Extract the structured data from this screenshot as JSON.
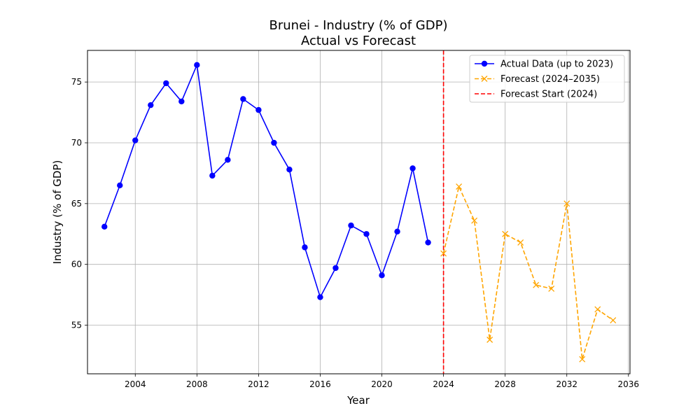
{
  "chart_data": {
    "type": "line",
    "title": "Brunei - Industry (% of GDP)",
    "subtitle": "Actual vs Forecast",
    "xlabel": "Year",
    "ylabel": "Industry (% of GDP)",
    "xlim": [
      2000.9,
      2036.1
    ],
    "ylim": [
      51.0,
      77.6
    ],
    "xticks": [
      2004,
      2008,
      2012,
      2016,
      2020,
      2024,
      2028,
      2032,
      2036
    ],
    "yticks": [
      55,
      60,
      65,
      70,
      75
    ],
    "grid": true,
    "legend_position": "top-right",
    "series": [
      {
        "name": "Actual Data (up to 2023)",
        "color": "#0000ff",
        "style": "solid",
        "marker": "circle",
        "x": [
          2002,
          2003,
          2004,
          2005,
          2006,
          2007,
          2008,
          2009,
          2010,
          2011,
          2012,
          2013,
          2014,
          2015,
          2016,
          2017,
          2018,
          2019,
          2020,
          2021,
          2022,
          2023
        ],
        "y": [
          63.1,
          66.5,
          70.2,
          73.1,
          74.9,
          73.4,
          76.4,
          67.3,
          68.6,
          73.6,
          72.7,
          70.0,
          67.8,
          61.4,
          57.3,
          59.7,
          63.2,
          62.5,
          59.1,
          62.7,
          67.9,
          61.8
        ]
      },
      {
        "name": "Forecast (2024–2035)",
        "color": "#ffa500",
        "style": "dashed",
        "marker": "x",
        "x": [
          2024,
          2025,
          2026,
          2027,
          2028,
          2029,
          2030,
          2031,
          2032,
          2033,
          2034,
          2035
        ],
        "y": [
          60.9,
          66.4,
          63.6,
          53.8,
          62.5,
          61.8,
          58.3,
          58.0,
          65.0,
          52.2,
          56.3,
          55.4
        ]
      }
    ],
    "vline": {
      "name": "Forecast Start (2024)",
      "x": 2024,
      "color": "#ff0000",
      "style": "dashed"
    }
  }
}
